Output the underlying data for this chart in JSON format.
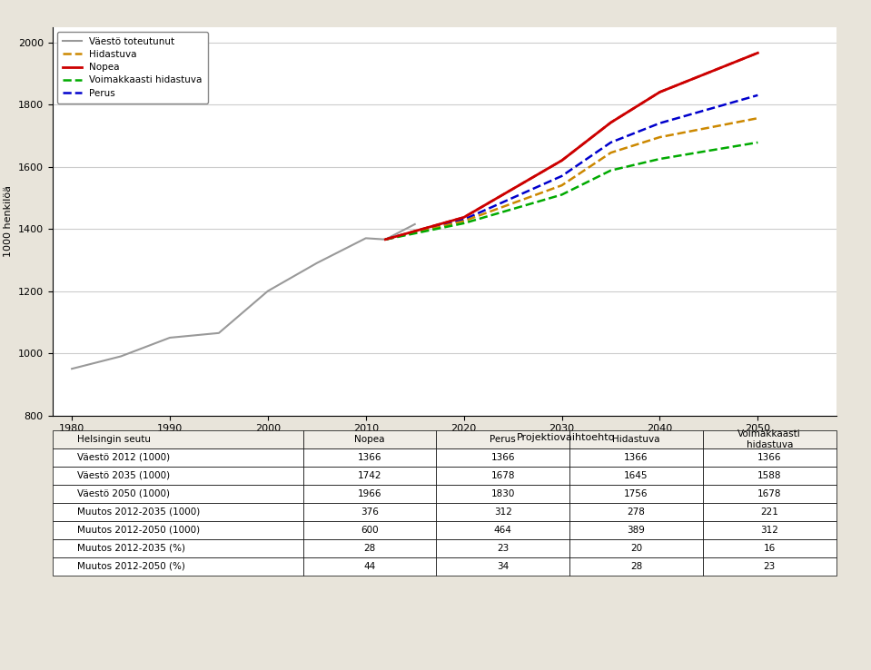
{
  "title": "",
  "ylabel": "1000 henkilöä",
  "xlim": [
    1978,
    2058
  ],
  "ylim": [
    800,
    2050
  ],
  "yticks": [
    800,
    1000,
    1200,
    1400,
    1600,
    1800,
    2000
  ],
  "xticks": [
    1980,
    1990,
    2000,
    2010,
    2020,
    2030,
    2040,
    2050
  ],
  "background_color": "#e8e4da",
  "plot_bg": "#ffffff",
  "historical": {
    "label": "Väestö toteutunut",
    "color": "#999999",
    "x": [
      1980,
      1985,
      1990,
      1995,
      2000,
      2005,
      2010,
      2012,
      2015
    ],
    "y": [
      950,
      990,
      1050,
      1065,
      1200,
      1290,
      1370,
      1366,
      1415
    ]
  },
  "nopea": {
    "label": "Nopea",
    "color": "#cc0000",
    "x": [
      2012,
      2020,
      2030,
      2035,
      2040,
      2050
    ],
    "y": [
      1366,
      1437,
      1620,
      1742,
      1840,
      1966
    ]
  },
  "perus": {
    "label": "Perus",
    "color": "#0000cc",
    "x": [
      2012,
      2020,
      2030,
      2035,
      2040,
      2050
    ],
    "y": [
      1366,
      1430,
      1570,
      1678,
      1740,
      1830
    ]
  },
  "hidastuva": {
    "label": "Hidastuva",
    "color": "#cc8800",
    "x": [
      2012,
      2020,
      2030,
      2035,
      2040,
      2050
    ],
    "y": [
      1366,
      1425,
      1540,
      1645,
      1695,
      1756
    ]
  },
  "voimakkaasti": {
    "label": "Voimakkaasti hidastuva",
    "color": "#00aa00",
    "x": [
      2012,
      2020,
      2030,
      2035,
      2040,
      2050
    ],
    "y": [
      1366,
      1418,
      1510,
      1588,
      1625,
      1678
    ]
  },
  "table_header1": "Projektiovaihtoehto",
  "table_col_header": "Helsingin seutu",
  "table_cols": [
    "Nopea",
    "Perus",
    "Hidastuva",
    "Voimakkaasti\nhidastuva"
  ],
  "table_rows": [
    [
      "Väestö 2012 (1000)",
      "1366",
      "1366",
      "1366",
      "1366"
    ],
    [
      "Väestö 2035 (1000)",
      "1742",
      "1678",
      "1645",
      "1588"
    ],
    [
      "Väestö 2050 (1000)",
      "1966",
      "1830",
      "1756",
      "1678"
    ],
    [
      "Muutos 2012-2035 (1000)",
      "376",
      "312",
      "278",
      "221"
    ],
    [
      "Muutos 2012-2050 (1000)",
      "600",
      "464",
      "389",
      "312"
    ],
    [
      "Muutos 2012-2035 (%)",
      "28",
      "23",
      "20",
      "16"
    ],
    [
      "Muutos 2012-2050 (%)",
      "44",
      "34",
      "28",
      "23"
    ]
  ]
}
